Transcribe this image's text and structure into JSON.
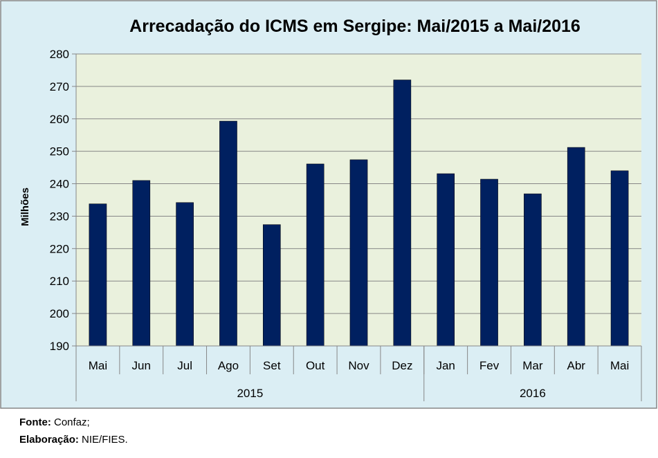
{
  "chart_data": {
    "type": "bar",
    "title": "Arrecadação do ICMS em Sergipe: Mai/2015 a Mai/2016",
    "ylabel": "Milhões",
    "xlabel": "",
    "ylim": [
      190,
      280
    ],
    "yticks": [
      190,
      200,
      210,
      220,
      230,
      240,
      250,
      260,
      270,
      280
    ],
    "grid": true,
    "legend": "none",
    "categories": [
      "Mai",
      "Jun",
      "Jul",
      "Ago",
      "Set",
      "Out",
      "Nov",
      "Dez",
      "Jan",
      "Fev",
      "Mar",
      "Abr",
      "Mai"
    ],
    "values": [
      233.8,
      241.0,
      234.2,
      259.3,
      227.4,
      246.1,
      247.4,
      272.0,
      243.1,
      241.4,
      236.9,
      251.2,
      244.0
    ],
    "groups": [
      {
        "label": "2015",
        "count": 8
      },
      {
        "label": "2016",
        "count": 5
      }
    ]
  },
  "colors": {
    "bar": "#002060",
    "plot_bg": "#eaf1dd",
    "frame_bg": "#dbeef4",
    "gridline": "#868686",
    "frame_border": "#868686"
  },
  "footer": {
    "source_label": "Fonte:",
    "source_value": "Confaz;",
    "elab_label": "Elaboração:",
    "elab_value": "NIE/FIES."
  }
}
